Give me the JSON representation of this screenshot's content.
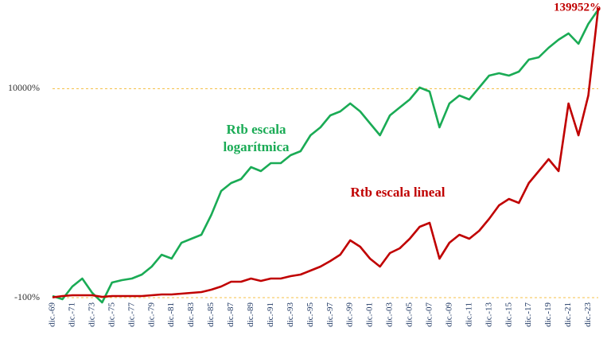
{
  "chart_data": {
    "type": "line",
    "categories": [
      "dic.-69",
      null,
      "dic.-71",
      null,
      "dic.-73",
      null,
      "dic.-75",
      null,
      "dic.-77",
      null,
      "dic.-79",
      null,
      "dic.-81",
      null,
      "dic.-83",
      null,
      "dic.-85",
      null,
      "dic.-87",
      null,
      "dic.-89",
      null,
      "dic.-91",
      null,
      "dic.-93",
      null,
      "dic.-95",
      null,
      "dic.-97",
      null,
      "dic.-99",
      null,
      "dic.-01",
      null,
      "dic.-03",
      null,
      "dic.-05",
      null,
      "dic.-07",
      null,
      "dic.-09",
      null,
      "dic.-11",
      null,
      "dic.-13",
      null,
      "dic.-15",
      null,
      "dic.-17",
      null,
      "dic.-19",
      null,
      "dic.-21",
      null,
      "dic.-23",
      null
    ],
    "series": [
      {
        "name": "Rtb escala logarítmica",
        "color": "#1aab55",
        "axis": "y2",
        "values": [
          3.6,
          -3.5,
          27.9,
          52.5,
          11.1,
          -10,
          39.7,
          47.2,
          52.5,
          66.5,
          98.5,
          158,
          137,
          236,
          267,
          301,
          522,
          955,
          1157,
          1273,
          1687,
          1537,
          1851,
          1851,
          2226,
          2440,
          3510,
          4200,
          5500,
          6020,
          7190,
          6020,
          4600,
          3510,
          5500,
          6580,
          7860,
          10270,
          9390,
          4200,
          7190,
          8590,
          7860,
          10270,
          13390,
          14120,
          13390,
          14630,
          19090,
          20120,
          24850,
          29690,
          34160,
          27170,
          42170,
          57970
        ]
      },
      {
        "name": "Rtb escala lineal",
        "color": "#c00000",
        "axis": "y",
        "values": [
          0,
          670,
          1054,
          1054,
          1054,
          285,
          670,
          670,
          670,
          670,
          1054,
          1439,
          1439,
          1824,
          2208,
          2593,
          3748,
          5287,
          7596,
          7596,
          9135,
          7981,
          9135,
          9135,
          10290,
          11056,
          12983,
          14907,
          17601,
          20679,
          27606,
          24528,
          18755,
          14907,
          21449,
          23758,
          28375,
          34147,
          36071,
          18755,
          26451,
          30299,
          28375,
          32223,
          37995,
          44537,
          47615,
          45691,
          55311,
          61083,
          66855,
          61083,
          93791,
          78399,
          97639,
          139952
        ]
      }
    ],
    "ylim": [
      -100,
      139952
    ],
    "yticks": [
      {
        "value": -100,
        "label": "-100%"
      }
    ],
    "y2lim": [
      0,
      60000
    ],
    "y2ticks": [
      {
        "value": 10000,
        "label": "10000%"
      }
    ],
    "y2log": true,
    "grid": true,
    "annotations": [
      {
        "text": "139952%"
      }
    ]
  }
}
